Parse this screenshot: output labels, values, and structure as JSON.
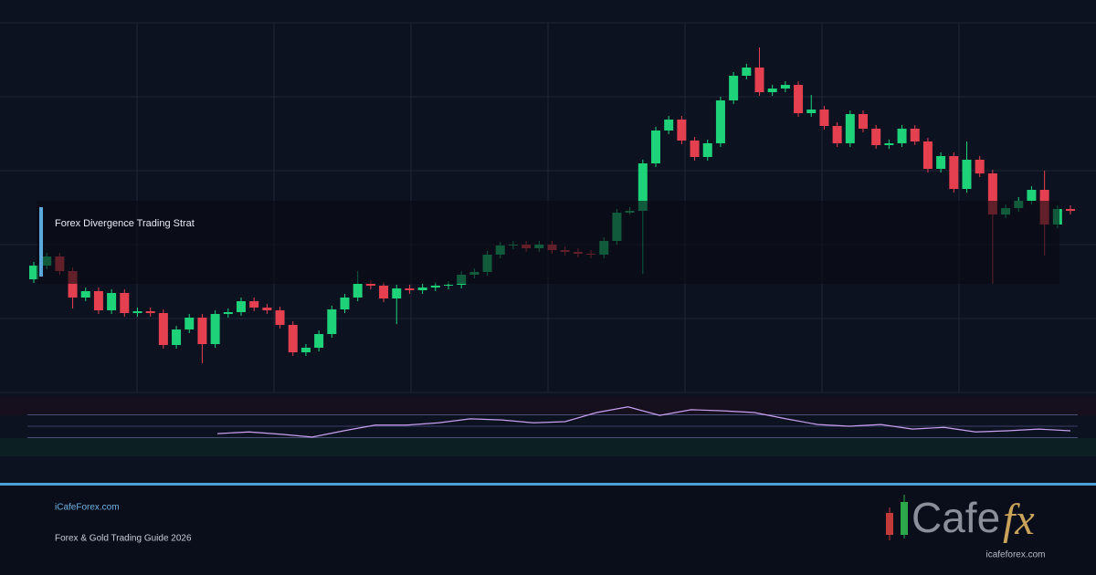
{
  "chart_data": {
    "type": "candlestick",
    "open": [
      124,
      139,
      149,
      133,
      104,
      111,
      90,
      109,
      87,
      89,
      87,
      52,
      69,
      82,
      53,
      86,
      88,
      100,
      93,
      90,
      74,
      44,
      49,
      64,
      91,
      104,
      119,
      117,
      103,
      114,
      112,
      115,
      117,
      118,
      129,
      132,
      151,
      161,
      162,
      158,
      162,
      156,
      154,
      152,
      151,
      166,
      197,
      199,
      251,
      287,
      299,
      276,
      258,
      273,
      320,
      347,
      356,
      329,
      333,
      337,
      306,
      310,
      292,
      273,
      305,
      289,
      271,
      273,
      289,
      275,
      245,
      259,
      223,
      255,
      240,
      195,
      202,
      210,
      222,
      184,
      201
    ],
    "high": [
      143,
      153,
      153,
      137,
      115,
      115,
      113,
      113,
      93,
      93,
      91,
      73,
      86,
      86,
      90,
      92,
      104,
      104,
      97,
      94,
      78,
      53,
      68,
      95,
      108,
      133,
      123,
      121,
      118,
      118,
      119,
      121,
      122,
      133,
      136,
      155,
      165,
      166,
      166,
      166,
      166,
      160,
      158,
      156,
      170,
      201,
      203,
      255,
      291,
      303,
      303,
      280,
      277,
      324,
      351,
      360,
      378,
      337,
      341,
      341,
      326,
      314,
      296,
      309,
      309,
      293,
      277,
      293,
      293,
      279,
      263,
      263,
      275,
      259,
      244,
      206,
      214,
      226,
      243,
      205,
      205
    ],
    "low": [
      120,
      135,
      129,
      92,
      100,
      86,
      86,
      83,
      83,
      83,
      48,
      48,
      65,
      32,
      49,
      82,
      84,
      89,
      86,
      70,
      40,
      40,
      45,
      60,
      87,
      100,
      113,
      99,
      75,
      108,
      108,
      111,
      113,
      114,
      125,
      128,
      147,
      157,
      154,
      154,
      152,
      150,
      148,
      147,
      147,
      162,
      195,
      130,
      247,
      283,
      272,
      254,
      254,
      269,
      316,
      343,
      325,
      325,
      329,
      302,
      302,
      288,
      269,
      269,
      285,
      267,
      267,
      269,
      271,
      241,
      241,
      219,
      219,
      236,
      119,
      191,
      198,
      206,
      150,
      180,
      195
    ],
    "close": [
      139,
      149,
      133,
      104,
      111,
      90,
      109,
      87,
      89,
      87,
      52,
      69,
      82,
      53,
      86,
      88,
      100,
      93,
      90,
      74,
      44,
      49,
      64,
      91,
      104,
      119,
      117,
      103,
      114,
      112,
      115,
      117,
      118,
      129,
      132,
      151,
      161,
      162,
      158,
      162,
      156,
      154,
      152,
      151,
      166,
      197,
      199,
      251,
      287,
      299,
      276,
      258,
      273,
      320,
      347,
      356,
      329,
      333,
      337,
      306,
      310,
      292,
      273,
      305,
      289,
      271,
      273,
      289,
      275,
      245,
      259,
      223,
      255,
      240,
      195,
      202,
      210,
      222,
      184,
      201,
      199
    ],
    "ylim": [
      0,
      405
    ],
    "up_color": "#1ed27a",
    "down_color": "#e5404f",
    "oscillator": {
      "type": "line",
      "color": "#c9a0f0",
      "ylim": [
        0,
        100
      ],
      "levels": [
        70,
        50,
        30
      ],
      "values": [
        37,
        40,
        36,
        31,
        42,
        52,
        52,
        56,
        63,
        61,
        56,
        58,
        74,
        84,
        69,
        79,
        77,
        74,
        63,
        53,
        50,
        53,
        45,
        48,
        40,
        42,
        45,
        42
      ]
    }
  },
  "overlay_label": "Forex Divergence Trading Strat",
  "footer": {
    "site": "iCafeForex.com",
    "guide": "Forex & Gold Trading Guide 2026"
  },
  "logo": {
    "word": "Cafe",
    "mark": "fx",
    "url": "icafeforex.com"
  }
}
